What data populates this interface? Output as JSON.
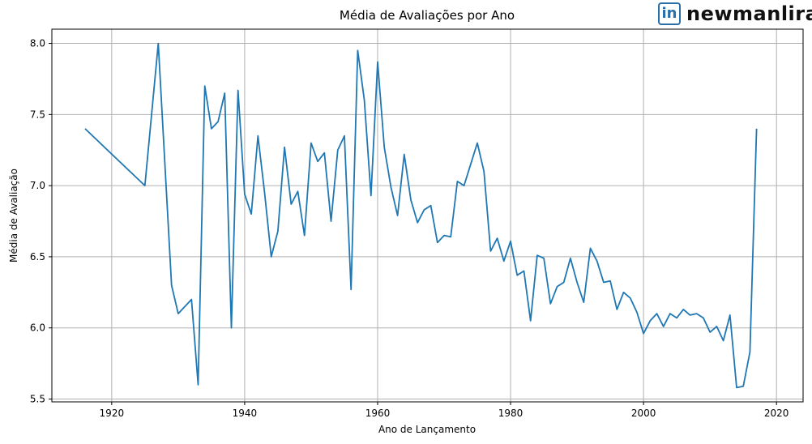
{
  "brand": {
    "logo_text": "in",
    "name": "newmanlira"
  },
  "chart_data": {
    "type": "line",
    "title": "Média de Avaliações por Ano",
    "xlabel": "Ano de Lançamento",
    "ylabel": "Média de Avaliação",
    "xlim": [
      1911,
      2024
    ],
    "ylim": [
      5.48,
      8.1
    ],
    "xticks": [
      1920,
      1940,
      1960,
      1980,
      2000,
      2020
    ],
    "yticks": [
      5.5,
      6.0,
      6.5,
      7.0,
      7.5,
      8.0
    ],
    "xtick_labels": [
      "1920",
      "1940",
      "1960",
      "1980",
      "2000",
      "2020"
    ],
    "ytick_labels": [
      "5.5",
      "6.0",
      "6.5",
      "7.0",
      "7.5",
      "8.0"
    ],
    "grid": true,
    "color": "#1f77b4",
    "x": [
      1916,
      1925,
      1927,
      1929,
      1930,
      1932,
      1933,
      1934,
      1935,
      1936,
      1937,
      1938,
      1939,
      1940,
      1941,
      1942,
      1943,
      1944,
      1945,
      1946,
      1947,
      1948,
      1949,
      1950,
      1951,
      1952,
      1953,
      1954,
      1955,
      1956,
      1957,
      1958,
      1959,
      1960,
      1961,
      1962,
      1963,
      1964,
      1965,
      1966,
      1967,
      1968,
      1969,
      1970,
      1971,
      1972,
      1973,
      1974,
      1975,
      1976,
      1977,
      1978,
      1979,
      1980,
      1981,
      1982,
      1983,
      1984,
      1985,
      1986,
      1987,
      1988,
      1989,
      1990,
      1991,
      1992,
      1993,
      1994,
      1995,
      1996,
      1997,
      1998,
      1999,
      2000,
      2001,
      2002,
      2003,
      2004,
      2005,
      2006,
      2007,
      2008,
      2009,
      2010,
      2011,
      2012,
      2013,
      2014,
      2015,
      2016,
      2017
    ],
    "y": [
      7.4,
      7.0,
      8.0,
      6.3,
      6.1,
      6.2,
      5.6,
      7.7,
      7.4,
      7.45,
      7.65,
      6.0,
      7.67,
      6.94,
      6.8,
      7.35,
      6.95,
      6.5,
      6.68,
      7.27,
      6.87,
      6.96,
      6.65,
      7.3,
      7.17,
      7.23,
      6.75,
      7.25,
      7.35,
      6.27,
      7.95,
      7.6,
      6.93,
      7.87,
      7.27,
      6.99,
      6.79,
      7.22,
      6.9,
      6.74,
      6.83,
      6.86,
      6.6,
      6.65,
      6.64,
      7.03,
      7.0,
      7.15,
      7.3,
      7.1,
      6.54,
      6.63,
      6.47,
      6.61,
      6.37,
      6.4,
      6.05,
      6.51,
      6.49,
      6.17,
      6.29,
      6.32,
      6.49,
      6.32,
      6.18,
      6.56,
      6.47,
      6.32,
      6.33,
      6.13,
      6.25,
      6.21,
      6.11,
      5.96,
      6.05,
      6.1,
      6.01,
      6.1,
      6.07,
      6.13,
      6.09,
      6.1,
      6.07,
      5.97,
      6.01,
      5.91,
      6.09,
      5.58,
      5.59,
      5.83,
      7.4
    ]
  }
}
